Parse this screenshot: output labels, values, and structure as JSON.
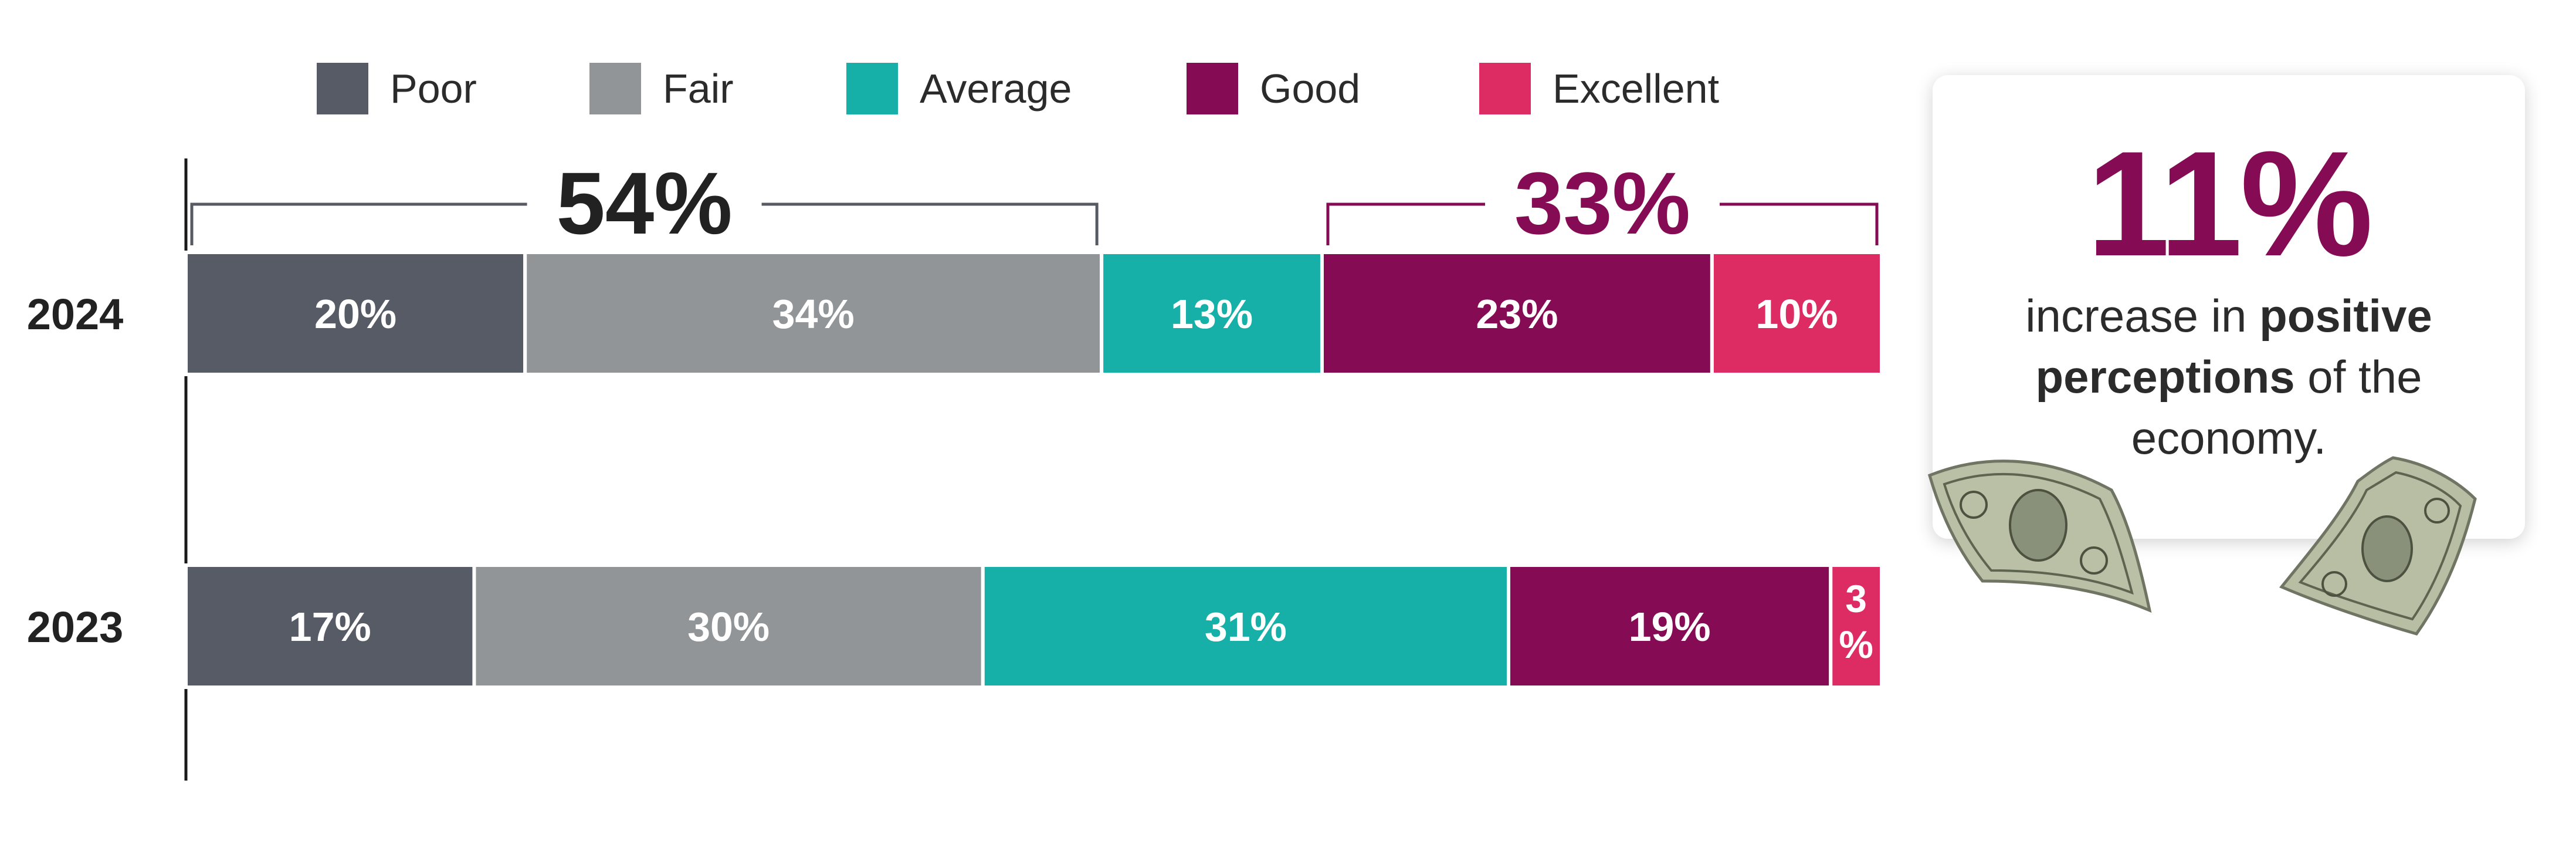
{
  "chart_data": {
    "type": "bar",
    "orientation": "horizontal",
    "stacked": true,
    "categories": [
      "2024",
      "2023"
    ],
    "series": [
      {
        "name": "Poor",
        "values": [
          20,
          17
        ],
        "labels": [
          "20%",
          "17%"
        ]
      },
      {
        "name": "Fair",
        "values": [
          34,
          30
        ],
        "labels": [
          "34%",
          "30%"
        ]
      },
      {
        "name": "Average",
        "values": [
          13,
          31
        ],
        "labels": [
          "13%",
          "31%"
        ]
      },
      {
        "name": "Good",
        "values": [
          23,
          19
        ],
        "labels": [
          "23%",
          "19%"
        ]
      },
      {
        "name": "Excellent",
        "values": [
          10,
          3
        ],
        "labels": [
          "10%",
          "3%"
        ]
      }
    ],
    "colors": [
      "#575b66",
      "#919598",
      "#16b0a9",
      "#840b54",
      "#dd2b64"
    ],
    "xlim": [
      0,
      100
    ],
    "legend": "top",
    "grid": false,
    "annotations": [
      {
        "text": "54%",
        "spans": [
          "Poor",
          "Fair"
        ],
        "category": "2024",
        "color": "#222222"
      },
      {
        "text": "33%",
        "spans": [
          "Good",
          "Excellent"
        ],
        "category": "2024",
        "color": "#840b54"
      }
    ]
  },
  "callout": {
    "value": "11%",
    "text_pre": "increase in ",
    "text_bold": "positive perceptions",
    "text_post": " of the economy."
  },
  "icons": [
    "dollar-bill-icon",
    "dollar-bill-icon"
  ]
}
